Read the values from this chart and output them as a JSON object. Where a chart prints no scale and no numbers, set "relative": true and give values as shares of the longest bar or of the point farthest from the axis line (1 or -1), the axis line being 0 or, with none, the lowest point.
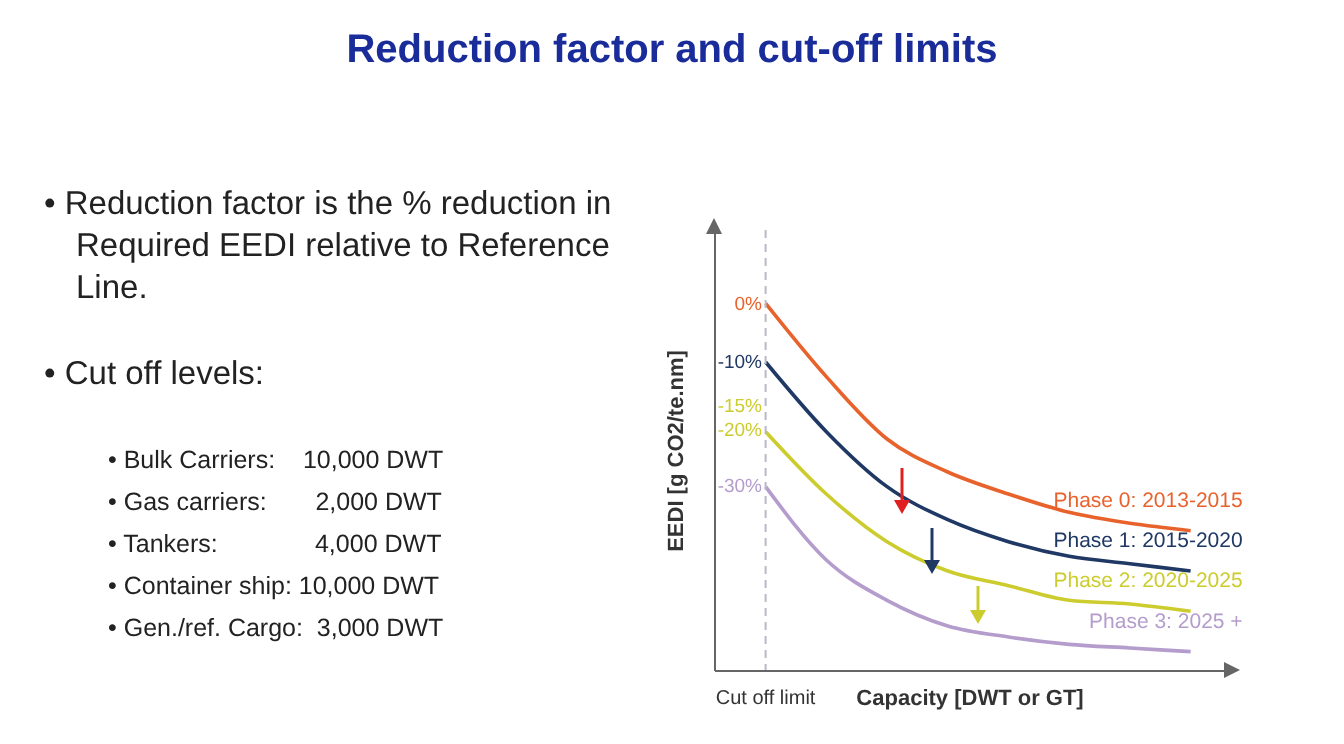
{
  "chart_data": {
    "type": "line",
    "relative": true,
    "title": "Reduction factor and cut-off limits",
    "xlabel": "Capacity   [DWT or GT]",
    "ylabel": "EEDI    [g CO2/te.nm]",
    "categories": [
      null,
      null,
      null,
      null,
      null,
      null,
      null,
      null
    ],
    "series": [
      {
        "name": "Phase 0:  2013-2015",
        "color": "#e8622c",
        "values": [
          1.0,
          0.8,
          0.63,
          0.54,
          0.48,
          0.43,
          0.4,
          0.38
        ]
      },
      {
        "name": "Phase 1: 2015-2020",
        "color": "#1f3864",
        "values": [
          0.84,
          0.65,
          0.5,
          0.41,
          0.35,
          0.31,
          0.29,
          0.27
        ]
      },
      {
        "name": "Phase 2: 2020-2025",
        "color": "#cccc2e",
        "values": [
          0.65,
          0.48,
          0.35,
          0.27,
          0.23,
          0.19,
          0.18,
          0.16
        ]
      },
      {
        "name": "Phase 3: 2025 +",
        "color": "#b49ccc",
        "values": [
          0.5,
          0.3,
          0.19,
          0.12,
          0.09,
          0.07,
          0.06,
          0.05
        ]
      }
    ],
    "ref_lines": [
      {
        "axis": "x",
        "label": "Cut off limit",
        "line_style": "dashed",
        "color": "#b8b8c8"
      }
    ],
    "annotations": [
      "0%",
      "-10%",
      "-15%",
      "-20%",
      "-30%",
      "• Reduction factor is the % reduction in Required EEDI relative to Reference Line.",
      "• Cut off levels:",
      "• Bulk Carriers:    10,000 DWT",
      "• Gas carriers:       2,000 DWT",
      "• Tankers:              4,000 DWT",
      "• Container ship: 10,000 DWT",
      "• Gen./ref. Cargo:  3,000 DWT"
    ],
    "legend": false,
    "grid": false,
    "marker": "none",
    "line_style": "solid"
  }
}
